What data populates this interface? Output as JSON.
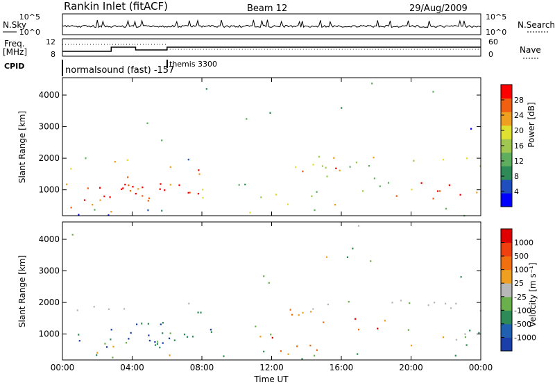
{
  "header": {
    "station": "Rankin Inlet (fitACF)",
    "beam": "Beam 12",
    "date": "29/Aug/2009"
  },
  "sky_panel": {
    "left_label": "N.Sky",
    "right_label": "N.Search",
    "left_ticks": [
      "10^5",
      "10^0"
    ],
    "right_ticks": [
      "10^5",
      "10^0"
    ]
  },
  "freq_panel": {
    "left_label_top": "Freq.",
    "left_label_unit": "[MHz]",
    "right_label": "Nave",
    "left_ticks": [
      "12",
      "8"
    ],
    "right_ticks": [
      "60",
      "0"
    ]
  },
  "cpid_panel": {
    "label": "CPID",
    "entries": [
      {
        "text": "normalsound (fast) -157",
        "start_hour": 0
      },
      {
        "text": "themis 3300",
        "start_hour": 6
      }
    ]
  },
  "x_axis": {
    "label": "Time UT",
    "ticks": [
      "00:00",
      "04:00",
      "08:00",
      "12:00",
      "16:00",
      "20:00",
      "00:00"
    ]
  },
  "chart_data": [
    {
      "type": "heatmap",
      "name": "power",
      "xlabel": "Time UT",
      "ylabel": "Slant Range [km]",
      "xlim_hours": [
        0,
        24
      ],
      "ylim_km": [
        180,
        4550
      ],
      "y_ticks": [
        "1000",
        "2000",
        "3000",
        "4000"
      ],
      "colorbar": {
        "label": "Power [dB]",
        "ticks": [
          "28",
          "24",
          "20",
          "16",
          "12",
          "8",
          "4"
        ],
        "colors": [
          "#0000ff",
          "#1f4fbf",
          "#2e8b57",
          "#5fae5f",
          "#a0c850",
          "#e0e030",
          "#f0a020",
          "#f06010",
          "#ff0000"
        ]
      }
    },
    {
      "type": "heatmap",
      "name": "velocity",
      "xlabel": "Time UT",
      "ylabel": "Slant Range [km]",
      "xlim_hours": [
        0,
        24
      ],
      "ylim_km": [
        180,
        4550
      ],
      "y_ticks": [
        "1000",
        "2000",
        "3000",
        "4000"
      ],
      "colorbar": {
        "label": "Velocity [m s⁻¹]",
        "ticks": [
          "1000",
          "500",
          "100",
          "25",
          "-25",
          "-100",
          "-500",
          "-1000"
        ],
        "colors": [
          "#1a3fa8",
          "#2060b0",
          "#2e8b57",
          "#6ab04c",
          "#b8b8b8",
          "#f0a020",
          "#f07010",
          "#f04010",
          "#e00000"
        ]
      }
    }
  ]
}
